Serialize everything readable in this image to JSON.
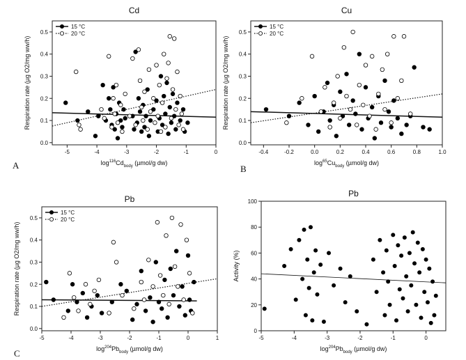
{
  "figure": {
    "description_labels": [
      "A",
      "B",
      "C"
    ]
  },
  "chart_data": [
    {
      "type": "scatter",
      "title": "Cd",
      "panel_label": "A",
      "xlabel_parts": [
        "log",
        "116",
        "Cd",
        "body",
        " (µmol/g dw)"
      ],
      "ylabel": "Respiration rate (µg O2/mg ww/h)",
      "xlim": [
        -5.5,
        0
      ],
      "ylim": [
        -0.01,
        0.55
      ],
      "xticks": [
        -5,
        -4,
        -3,
        -2,
        -1,
        0
      ],
      "xtick_labels": [
        "-5",
        "-4",
        "-3",
        "-2",
        "-1",
        "0"
      ],
      "yticks": [
        0.0,
        0.1,
        0.2,
        0.3,
        0.4,
        0.5
      ],
      "ytick_labels": [
        "0.0",
        "0.1",
        "0.2",
        "0.3",
        "0.4",
        "0.5"
      ],
      "legend": {
        "position": "top-left",
        "entries": [
          "15 °C",
          "20 °C"
        ]
      },
      "series": [
        {
          "name": "15 °C",
          "marker": "filled",
          "x": [
            -5.05,
            -4.65,
            -4.3,
            -4.05,
            -3.95,
            -3.8,
            -3.7,
            -3.6,
            -3.55,
            -3.5,
            -3.45,
            -3.4,
            -3.35,
            -3.3,
            -3.25,
            -3.2,
            -3.15,
            -3.1,
            -3.05,
            -2.8,
            -2.75,
            -2.7,
            -2.65,
            -2.6,
            -2.55,
            -2.5,
            -2.45,
            -2.4,
            -2.35,
            -2.3,
            -2.25,
            -2.2,
            -2.1,
            -2.0,
            -1.95,
            -1.9,
            -1.85,
            -1.8,
            -1.75,
            -1.7,
            -1.65,
            -1.6,
            -1.55,
            -1.5,
            -1.45,
            -1.4,
            -1.35,
            -1.3,
            -1.2,
            -1.1,
            -1.05,
            -0.95
          ],
          "y": [
            0.18,
            0.1,
            0.14,
            0.03,
            0.12,
            0.26,
            0.1,
            0.2,
            0.15,
            0.08,
            0.25,
            0.06,
            0.13,
            0.02,
            0.18,
            0.1,
            0.07,
            0.15,
            0.11,
            0.12,
            0.06,
            0.41,
            0.09,
            0.2,
            0.14,
            0.05,
            0.17,
            0.07,
            0.12,
            0.24,
            0.03,
            0.1,
            0.15,
            0.19,
            0.05,
            0.11,
            0.3,
            0.08,
            0.21,
            0.13,
            0.27,
            0.04,
            0.16,
            0.09,
            0.22,
            0.12,
            0.06,
            0.18,
            0.1,
            0.15,
            0.05,
            0.09
          ]
        },
        {
          "name": "20 °C",
          "marker": "open",
          "x": [
            -4.7,
            -4.6,
            -4.55,
            -3.85,
            -3.75,
            -3.6,
            -3.5,
            -3.45,
            -3.4,
            -3.35,
            -3.3,
            -3.2,
            -3.15,
            -3.05,
            -2.9,
            -2.8,
            -2.7,
            -2.6,
            -2.55,
            -2.5,
            -2.45,
            -2.4,
            -2.3,
            -2.25,
            -2.2,
            -2.1,
            -2.05,
            -2.0,
            -1.95,
            -1.9,
            -1.85,
            -1.8,
            -1.75,
            -1.7,
            -1.65,
            -1.6,
            -1.55,
            -1.5,
            -1.45,
            -1.4,
            -1.35,
            -1.3,
            -1.25,
            -1.2,
            -1.15,
            -1.1
          ],
          "y": [
            0.32,
            0.08,
            0.06,
            0.15,
            0.11,
            0.39,
            0.07,
            0.2,
            0.13,
            0.26,
            0.09,
            0.17,
            0.05,
            0.22,
            0.12,
            0.38,
            0.08,
            0.42,
            0.28,
            0.16,
            0.1,
            0.23,
            0.06,
            0.33,
            0.14,
            0.2,
            0.09,
            0.35,
            0.12,
            0.26,
            0.05,
            0.18,
            0.4,
            0.07,
            0.29,
            0.36,
            0.48,
            0.11,
            0.24,
            0.47,
            0.15,
            0.32,
            0.08,
            0.21,
            0.13,
            0.06
          ]
        }
      ],
      "fit_lines": [
        {
          "series": "15 °C",
          "style": "solid",
          "x": [
            -5.5,
            0
          ],
          "y": [
            0.135,
            0.115
          ]
        },
        {
          "series": "20 °C",
          "style": "dotted",
          "x": [
            -5.5,
            0
          ],
          "y": [
            0.075,
            0.24
          ]
        }
      ]
    },
    {
      "type": "scatter",
      "title": "Cu",
      "panel_label": "B",
      "xlabel_parts": [
        "log",
        "65",
        "Cu",
        "body",
        " (µmol/g dw)"
      ],
      "ylabel": "Respiration rate (µg O2/mg ww/h)",
      "xlim": [
        -0.5,
        1.0
      ],
      "ylim": [
        -0.01,
        0.55
      ],
      "xticks": [
        -0.4,
        -0.2,
        0.0,
        0.2,
        0.4,
        0.6,
        0.8,
        1.0
      ],
      "xtick_labels": [
        "-0.4",
        "-0.2",
        "0.0",
        "0.2",
        "0.4",
        "0.6",
        "0.8",
        "1.0"
      ],
      "yticks": [
        0.0,
        0.1,
        0.2,
        0.3,
        0.4,
        0.5
      ],
      "ytick_labels": [
        "0.0",
        "0.1",
        "0.2",
        "0.3",
        "0.4",
        "0.5"
      ],
      "legend": {
        "position": "top-left",
        "entries": [
          "15 °C",
          "20 °C"
        ]
      },
      "series": [
        {
          "name": "15 °C",
          "marker": "filled",
          "x": [
            -0.38,
            -0.2,
            -0.12,
            -0.05,
            0.0,
            0.03,
            0.07,
            0.1,
            0.12,
            0.15,
            0.17,
            0.2,
            0.22,
            0.25,
            0.27,
            0.3,
            0.32,
            0.35,
            0.37,
            0.4,
            0.42,
            0.45,
            0.47,
            0.5,
            0.52,
            0.55,
            0.58,
            0.6,
            0.62,
            0.65,
            0.68,
            0.72,
            0.75,
            0.78,
            0.85,
            0.9
          ],
          "y": [
            0.15,
            0.12,
            0.18,
            0.08,
            0.21,
            0.05,
            0.14,
            0.27,
            0.1,
            0.17,
            0.03,
            0.23,
            0.12,
            0.31,
            0.08,
            0.19,
            0.13,
            0.4,
            0.06,
            0.25,
            0.11,
            0.16,
            0.02,
            0.21,
            0.09,
            0.28,
            0.14,
            0.07,
            0.19,
            0.11,
            0.04,
            0.08,
            0.12,
            0.34,
            0.07,
            0.06
          ]
        },
        {
          "name": "20 °C",
          "marker": "open",
          "x": [
            -0.22,
            -0.1,
            -0.02,
            0.05,
            0.08,
            0.12,
            0.15,
            0.18,
            0.2,
            0.23,
            0.25,
            0.28,
            0.3,
            0.33,
            0.35,
            0.38,
            0.4,
            0.43,
            0.45,
            0.48,
            0.5,
            0.53,
            0.55,
            0.57,
            0.6,
            0.62,
            0.65,
            0.68,
            0.7,
            0.75
          ],
          "y": [
            0.09,
            0.2,
            0.39,
            0.14,
            0.25,
            0.07,
            0.18,
            0.3,
            0.11,
            0.43,
            0.21,
            0.15,
            0.5,
            0.08,
            0.26,
            0.17,
            0.35,
            0.12,
            0.39,
            0.06,
            0.22,
            0.33,
            0.15,
            0.4,
            0.09,
            0.48,
            0.2,
            0.28,
            0.48,
            0.13
          ]
        }
      ],
      "fit_lines": [
        {
          "series": "15 °C",
          "style": "solid",
          "x": [
            -0.5,
            1.0
          ],
          "y": [
            0.14,
            0.115
          ]
        },
        {
          "series": "20 °C",
          "style": "dotted",
          "x": [
            -0.5,
            1.0
          ],
          "y": [
            0.09,
            0.22
          ]
        }
      ]
    },
    {
      "type": "scatter",
      "title": "Pb",
      "panel_label": "C",
      "xlabel_parts": [
        "log",
        "204",
        "Pb",
        "body",
        " (µmol/g dw)"
      ],
      "ylabel": "Respiration rate (µg O2/mg ww/h)",
      "xlim": [
        -5,
        1
      ],
      "ylim": [
        -0.01,
        0.55
      ],
      "xticks": [
        -5,
        -4,
        -3,
        -2,
        -1,
        0,
        1
      ],
      "xtick_labels": [
        "-5",
        "-4",
        "-3",
        "-2",
        "-1",
        "0",
        "1"
      ],
      "yticks": [
        0.0,
        0.1,
        0.2,
        0.3,
        0.4,
        0.5
      ],
      "ytick_labels": [
        "0.0",
        "0.1",
        "0.2",
        "0.3",
        "0.4",
        "0.5"
      ],
      "legend": {
        "position": "top-left",
        "entries": [
          "15 °C",
          "20 °C"
        ]
      },
      "series": [
        {
          "name": "15 °C",
          "marker": "filled",
          "x": [
            -4.85,
            -4.6,
            -4.1,
            -3.95,
            -3.8,
            -3.6,
            -3.45,
            -3.3,
            -3.1,
            -2.95,
            -2.6,
            -2.3,
            -2.1,
            -1.9,
            -1.75,
            -1.6,
            -1.45,
            -1.3,
            -1.2,
            -1.1,
            -1.0,
            -0.9,
            -0.8,
            -0.7,
            -0.6,
            -0.5,
            -0.4,
            -0.3,
            -0.2,
            -0.1,
            0.0,
            0.05,
            0.1,
            0.2
          ],
          "y": [
            0.21,
            0.13,
            0.08,
            0.2,
            0.12,
            0.16,
            0.05,
            0.1,
            0.15,
            0.07,
            0.12,
            0.2,
            0.17,
            0.04,
            0.11,
            0.26,
            0.08,
            0.14,
            0.03,
            0.3,
            0.12,
            0.09,
            0.22,
            0.05,
            0.27,
            0.15,
            0.35,
            0.1,
            0.19,
            0.06,
            0.33,
            0.13,
            0.08,
            0.21
          ]
        },
        {
          "name": "20 °C",
          "marker": "open",
          "x": [
            -4.25,
            -4.05,
            -3.9,
            -3.75,
            -3.5,
            -3.35,
            -3.2,
            -3.05,
            -2.7,
            -2.55,
            -2.45,
            -2.25,
            -1.85,
            -1.6,
            -1.5,
            -1.35,
            -1.2,
            -1.05,
            -0.95,
            -0.85,
            -0.75,
            -0.65,
            -0.55,
            -0.45,
            -0.35,
            -0.25,
            -0.15,
            -0.05,
            0.05,
            0.15
          ],
          "y": [
            0.05,
            0.25,
            0.14,
            0.08,
            0.2,
            0.11,
            0.17,
            0.22,
            0.07,
            0.39,
            0.3,
            0.15,
            0.09,
            0.21,
            0.13,
            0.31,
            0.19,
            0.48,
            0.24,
            0.15,
            0.42,
            0.11,
            0.5,
            0.28,
            0.19,
            0.47,
            0.13,
            0.4,
            0.25,
            0.07
          ]
        }
      ],
      "fit_lines": [
        {
          "series": "15 °C",
          "style": "solid",
          "x": [
            -5,
            0.3
          ],
          "y": [
            0.13,
            0.125
          ]
        },
        {
          "series": "20 °C",
          "style": "dotted",
          "x": [
            -5,
            1
          ],
          "y": [
            0.1,
            0.225
          ]
        }
      ]
    },
    {
      "type": "scatter",
      "title": "Pb",
      "panel_label": "",
      "xlabel_parts": [
        "log",
        "204",
        "Pb",
        "body",
        " (µmol/g dw)"
      ],
      "ylabel": "Activity (%)",
      "xlim": [
        -5,
        0.6
      ],
      "ylim": [
        0,
        100
      ],
      "xticks": [
        -5,
        -4,
        -3,
        -2,
        -1,
        0
      ],
      "xtick_labels": [
        "-5",
        "-4",
        "-3",
        "-2",
        "-1",
        "0"
      ],
      "yticks": [
        0,
        20,
        40,
        60,
        80,
        100
      ],
      "ytick_labels": [
        "0",
        "20",
        "40",
        "60",
        "80",
        "100"
      ],
      "legend": null,
      "series": [
        {
          "name": "Activity",
          "marker": "filled",
          "x": [
            -4.9,
            -4.3,
            -4.1,
            -3.95,
            -3.85,
            -3.75,
            -3.7,
            -3.65,
            -3.6,
            -3.55,
            -3.5,
            -3.45,
            -3.4,
            -3.35,
            -3.3,
            -3.2,
            -3.1,
            -2.95,
            -2.8,
            -2.6,
            -2.45,
            -2.3,
            -2.1,
            -1.8,
            -1.6,
            -1.5,
            -1.4,
            -1.3,
            -1.25,
            -1.2,
            -1.15,
            -1.1,
            -1.0,
            -0.95,
            -0.9,
            -0.85,
            -0.8,
            -0.75,
            -0.7,
            -0.65,
            -0.6,
            -0.55,
            -0.5,
            -0.45,
            -0.4,
            -0.35,
            -0.3,
            -0.25,
            -0.2,
            -0.15,
            -0.1,
            -0.05,
            0.0,
            0.05,
            0.1,
            0.15,
            0.2,
            0.25,
            0.3
          ],
          "y": [
            17,
            50,
            63,
            24,
            70,
            40,
            78,
            12,
            55,
            33,
            80,
            8,
            45,
            62,
            28,
            51,
            7,
            60,
            35,
            48,
            22,
            42,
            15,
            5,
            55,
            30,
            70,
            45,
            12,
            62,
            38,
            20,
            74,
            50,
            8,
            66,
            32,
            58,
            25,
            72,
            42,
            15,
            60,
            35,
            76,
            52,
            20,
            68,
            45,
            10,
            63,
            30,
            55,
            22,
            48,
            6,
            38,
            12,
            27
          ]
        }
      ],
      "fit_lines": [
        {
          "series": "Activity",
          "style": "solid",
          "x": [
            -5,
            0.6
          ],
          "y": [
            44,
            37
          ]
        }
      ]
    }
  ]
}
